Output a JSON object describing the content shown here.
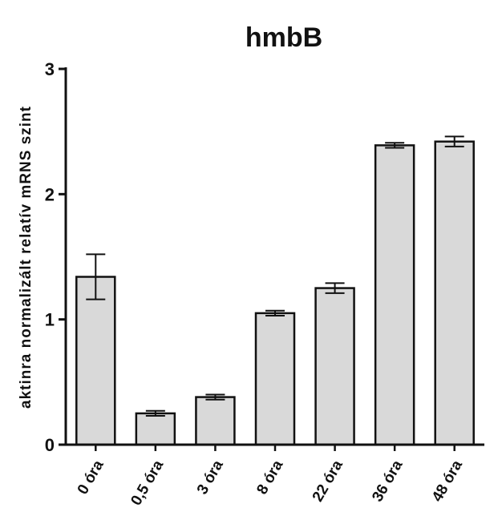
{
  "chart_data": {
    "type": "bar",
    "title": "hmbB",
    "xlabel": "",
    "ylabel": "aktinra normalizált relatív mRNS szint",
    "ylim": [
      0,
      3
    ],
    "yticks": [
      "0",
      "1",
      "2",
      "3"
    ],
    "categories": [
      "0 óra",
      "0,5 óra",
      "3 óra",
      "8 óra",
      "22 óra",
      "36 óra",
      "48 óra"
    ],
    "values": [
      1.34,
      0.25,
      0.38,
      1.05,
      1.25,
      2.39,
      2.42
    ],
    "errors": [
      0.18,
      0.02,
      0.02,
      0.02,
      0.04,
      0.02,
      0.04
    ],
    "bar_color": "#d9d9d9",
    "edge_color": "#111111",
    "grid": false
  }
}
